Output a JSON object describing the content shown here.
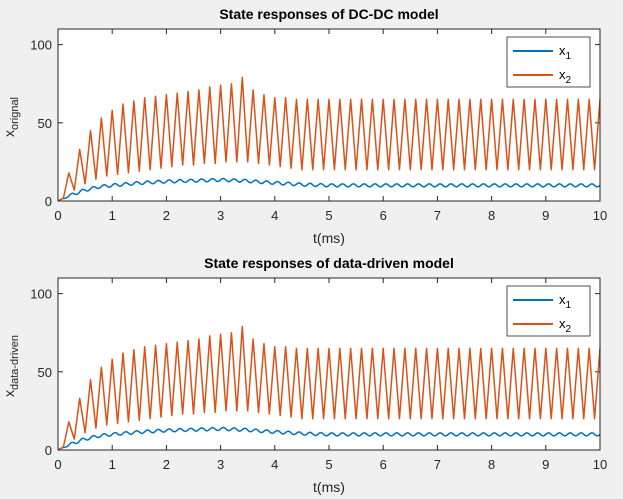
{
  "chart_data": [
    {
      "type": "line",
      "title": "State responses of DC-DC model",
      "xlabel": "t(ms)",
      "ylabel_main": "x",
      "ylabel_sub": "orignal",
      "xlim": [
        0,
        10
      ],
      "ylim": [
        0,
        110
      ],
      "xticks": [
        0,
        1,
        2,
        3,
        4,
        5,
        6,
        7,
        8,
        9,
        10
      ],
      "yticks": [
        0,
        50,
        100
      ],
      "legend_position": "top-right",
      "series": [
        {
          "name": "x",
          "name_sub": "1",
          "color": "#0072bd",
          "x": [
            0,
            0.25,
            0.5,
            0.75,
            1,
            1.5,
            2,
            2.5,
            3,
            3.4,
            3.8,
            4.5,
            5,
            6,
            7,
            8,
            9,
            10
          ],
          "y": [
            0,
            4,
            7,
            9,
            10,
            11.5,
            12.5,
            13,
            13.5,
            13,
            12,
            10.5,
            10,
            10,
            10,
            10,
            10,
            10
          ],
          "ripple": 1
        },
        {
          "name": "x",
          "name_sub": "2",
          "color": "#d95319",
          "period_ms": 0.2,
          "peaks_x": [
            0.2,
            0.4,
            0.6,
            0.8,
            1.0,
            1.2,
            1.4,
            1.6,
            1.8,
            2.0,
            2.2,
            2.4,
            2.6,
            2.8,
            3.0,
            3.2,
            3.4,
            3.6,
            3.8,
            4.0,
            4.2,
            4.4,
            4.6,
            4.8,
            5.0,
            5.2,
            5.4,
            5.6,
            5.8,
            6.0,
            6.2,
            6.4,
            6.6,
            6.8,
            7.0,
            7.2,
            7.4,
            7.6,
            7.8,
            8.0,
            8.2,
            8.4,
            8.6,
            8.8,
            9.0,
            9.2,
            9.4,
            9.6,
            9.8,
            10.0
          ],
          "peaks_y": [
            18,
            33,
            45,
            53,
            58,
            62,
            64,
            66,
            67,
            68,
            69,
            70,
            71,
            73,
            74,
            75,
            79,
            71,
            68,
            66,
            66,
            65,
            65,
            65,
            65,
            65,
            65,
            65,
            65,
            65,
            65,
            65,
            65,
            65,
            65,
            65,
            65,
            65,
            65,
            65,
            65,
            65,
            65,
            65,
            65,
            65,
            65,
            65,
            65,
            65
          ],
          "troughs_x": [
            0.1,
            0.3,
            0.5,
            0.7,
            0.9,
            1.1,
            1.3,
            1.5,
            1.7,
            1.9,
            2.1,
            2.3,
            2.5,
            2.7,
            2.9,
            3.1,
            3.3,
            3.5,
            3.7,
            3.9,
            4.1,
            4.3,
            4.5,
            4.7,
            4.9,
            5.1,
            5.3,
            5.5,
            5.7,
            5.9,
            6.1,
            6.3,
            6.5,
            6.7,
            6.9,
            7.1,
            7.3,
            7.5,
            7.7,
            7.9,
            8.1,
            8.3,
            8.5,
            8.7,
            8.9,
            9.1,
            9.3,
            9.5,
            9.7,
            9.9
          ],
          "troughs_y": [
            2,
            7,
            11,
            14,
            16,
            17,
            18,
            19,
            20,
            21,
            22,
            23,
            23,
            24,
            24,
            25,
            25,
            25,
            24,
            23,
            22,
            21,
            20,
            20,
            20,
            20,
            20,
            20,
            20,
            20,
            20,
            20,
            20,
            20,
            20,
            20,
            20,
            20,
            20,
            20,
            20,
            20,
            20,
            20,
            20,
            20,
            20,
            20,
            20,
            20
          ]
        }
      ]
    },
    {
      "type": "line",
      "title": "State responses of data-driven model",
      "xlabel": "t(ms)",
      "ylabel_main": "x",
      "ylabel_sub": "data-driven",
      "xlim": [
        0,
        10
      ],
      "ylim": [
        0,
        110
      ],
      "xticks": [
        0,
        1,
        2,
        3,
        4,
        5,
        6,
        7,
        8,
        9,
        10
      ],
      "yticks": [
        0,
        50,
        100
      ],
      "legend_position": "top-right",
      "series": [
        {
          "name": "x",
          "name_sub": "1",
          "color": "#0072bd",
          "x": [
            0,
            0.25,
            0.5,
            0.75,
            1,
            1.5,
            2,
            2.5,
            3,
            3.4,
            3.8,
            4.5,
            5,
            6,
            7,
            8,
            9,
            10
          ],
          "y": [
            0,
            4,
            7,
            9,
            10,
            11.5,
            12.5,
            13,
            13.5,
            13,
            12,
            10.5,
            10,
            10,
            10,
            10,
            10,
            10
          ],
          "ripple": 1
        },
        {
          "name": "x",
          "name_sub": "2",
          "color": "#d95319",
          "period_ms": 0.2,
          "peaks_x": [
            0.2,
            0.4,
            0.6,
            0.8,
            1.0,
            1.2,
            1.4,
            1.6,
            1.8,
            2.0,
            2.2,
            2.4,
            2.6,
            2.8,
            3.0,
            3.2,
            3.4,
            3.6,
            3.8,
            4.0,
            4.2,
            4.4,
            4.6,
            4.8,
            5.0,
            5.2,
            5.4,
            5.6,
            5.8,
            6.0,
            6.2,
            6.4,
            6.6,
            6.8,
            7.0,
            7.2,
            7.4,
            7.6,
            7.8,
            8.0,
            8.2,
            8.4,
            8.6,
            8.8,
            9.0,
            9.2,
            9.4,
            9.6,
            9.8,
            10.0
          ],
          "peaks_y": [
            18,
            33,
            45,
            53,
            58,
            62,
            64,
            66,
            67,
            68,
            69,
            70,
            71,
            73,
            74,
            75,
            79,
            71,
            68,
            66,
            66,
            65,
            65,
            65,
            65,
            65,
            65,
            65,
            65,
            65,
            65,
            65,
            65,
            65,
            65,
            65,
            65,
            65,
            65,
            65,
            65,
            65,
            65,
            65,
            65,
            65,
            65,
            65,
            65,
            65
          ],
          "troughs_x": [
            0.1,
            0.3,
            0.5,
            0.7,
            0.9,
            1.1,
            1.3,
            1.5,
            1.7,
            1.9,
            2.1,
            2.3,
            2.5,
            2.7,
            2.9,
            3.1,
            3.3,
            3.5,
            3.7,
            3.9,
            4.1,
            4.3,
            4.5,
            4.7,
            4.9,
            5.1,
            5.3,
            5.5,
            5.7,
            5.9,
            6.1,
            6.3,
            6.5,
            6.7,
            6.9,
            7.1,
            7.3,
            7.5,
            7.7,
            7.9,
            8.1,
            8.3,
            8.5,
            8.7,
            8.9,
            9.1,
            9.3,
            9.5,
            9.7,
            9.9
          ],
          "troughs_y": [
            2,
            7,
            11,
            14,
            16,
            17,
            18,
            19,
            20,
            21,
            22,
            23,
            23,
            24,
            24,
            25,
            25,
            25,
            24,
            23,
            22,
            21,
            20,
            20,
            20,
            20,
            20,
            20,
            20,
            20,
            20,
            20,
            20,
            20,
            20,
            20,
            20,
            20,
            20,
            20,
            20,
            20,
            20,
            20,
            20,
            20,
            20,
            20,
            20,
            20
          ]
        }
      ]
    }
  ]
}
